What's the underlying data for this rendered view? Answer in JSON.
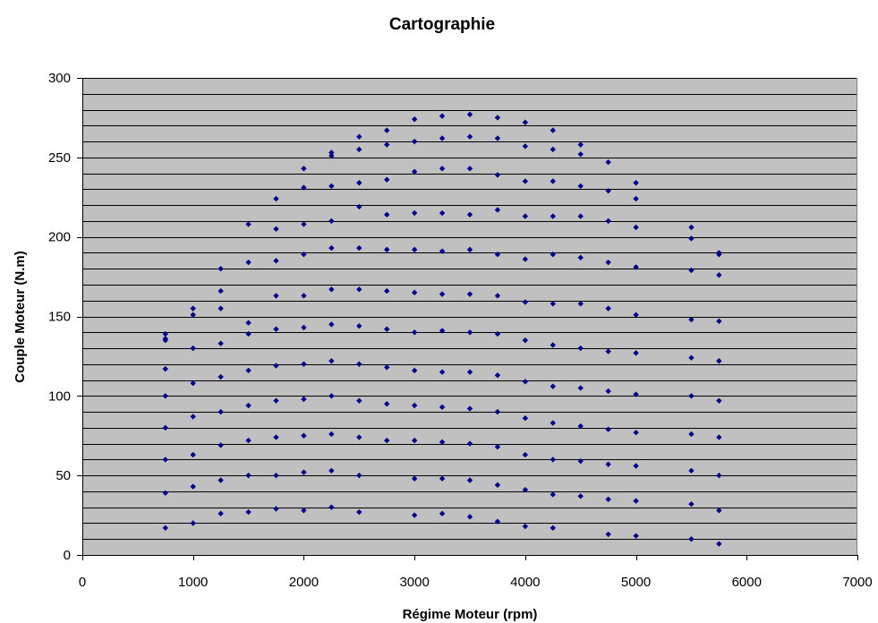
{
  "chart_data": {
    "type": "scatter",
    "title": "Cartographie",
    "xlabel": "Régime Moteur (rpm)",
    "ylabel": "Couple Moteur (N.m)",
    "xlim": [
      0,
      7000
    ],
    "ylim": [
      0,
      300
    ],
    "x_ticks": [
      "0",
      "1000",
      "2000",
      "3000",
      "4000",
      "5000",
      "6000",
      "7000"
    ],
    "y_ticks": [
      "0",
      "50",
      "100",
      "150",
      "200",
      "250",
      "300"
    ],
    "y_minor_step": 10,
    "grid": true,
    "legend": "none",
    "colors": {
      "plot_bg": "#c0c0c0",
      "grid": "#000000",
      "marker": "#00008b"
    },
    "series": [
      {
        "points": [
          [
            750,
            17
          ],
          [
            750,
            39
          ],
          [
            750,
            60
          ],
          [
            750,
            80
          ],
          [
            750,
            100
          ],
          [
            750,
            117
          ],
          [
            750,
            135
          ],
          [
            750,
            136
          ],
          [
            750,
            139
          ],
          [
            1000,
            20
          ],
          [
            1000,
            43
          ],
          [
            1000,
            63
          ],
          [
            1000,
            87
          ],
          [
            1000,
            108
          ],
          [
            1000,
            130
          ],
          [
            1000,
            151
          ],
          [
            1000,
            155
          ],
          [
            1250,
            26
          ],
          [
            1250,
            47
          ],
          [
            1250,
            69
          ],
          [
            1250,
            90
          ],
          [
            1250,
            112
          ],
          [
            1250,
            133
          ],
          [
            1250,
            155
          ],
          [
            1250,
            166
          ],
          [
            1250,
            180
          ],
          [
            1500,
            27
          ],
          [
            1500,
            50
          ],
          [
            1500,
            72
          ],
          [
            1500,
            94
          ],
          [
            1500,
            116
          ],
          [
            1500,
            139
          ],
          [
            1500,
            146
          ],
          [
            1500,
            184
          ],
          [
            1500,
            208
          ],
          [
            1750,
            29
          ],
          [
            1750,
            50
          ],
          [
            1750,
            74
          ],
          [
            1750,
            97
          ],
          [
            1750,
            119
          ],
          [
            1750,
            142
          ],
          [
            1750,
            163
          ],
          [
            1750,
            185
          ],
          [
            1750,
            205
          ],
          [
            1750,
            224
          ],
          [
            2000,
            28
          ],
          [
            2000,
            52
          ],
          [
            2000,
            75
          ],
          [
            2000,
            98
          ],
          [
            2000,
            120
          ],
          [
            2000,
            143
          ],
          [
            2000,
            163
          ],
          [
            2000,
            189
          ],
          [
            2000,
            208
          ],
          [
            2000,
            231
          ],
          [
            2000,
            243
          ],
          [
            2250,
            30
          ],
          [
            2250,
            53
          ],
          [
            2250,
            76
          ],
          [
            2250,
            100
          ],
          [
            2250,
            122
          ],
          [
            2250,
            145
          ],
          [
            2250,
            167
          ],
          [
            2250,
            193
          ],
          [
            2250,
            210
          ],
          [
            2250,
            232
          ],
          [
            2250,
            251
          ],
          [
            2250,
            253
          ],
          [
            2500,
            27
          ],
          [
            2500,
            50
          ],
          [
            2500,
            74
          ],
          [
            2500,
            97
          ],
          [
            2500,
            120
          ],
          [
            2500,
            144
          ],
          [
            2500,
            167
          ],
          [
            2500,
            193
          ],
          [
            2500,
            219
          ],
          [
            2500,
            234
          ],
          [
            2500,
            255
          ],
          [
            2500,
            263
          ],
          [
            2750,
            72
          ],
          [
            2750,
            95
          ],
          [
            2750,
            118
          ],
          [
            2750,
            142
          ],
          [
            2750,
            166
          ],
          [
            2750,
            192
          ],
          [
            2750,
            214
          ],
          [
            2750,
            236
          ],
          [
            2750,
            258
          ],
          [
            2750,
            267
          ],
          [
            3000,
            25
          ],
          [
            3000,
            48
          ],
          [
            3000,
            72
          ],
          [
            3000,
            94
          ],
          [
            3000,
            116
          ],
          [
            3000,
            140
          ],
          [
            3000,
            165
          ],
          [
            3000,
            192
          ],
          [
            3000,
            215
          ],
          [
            3000,
            241
          ],
          [
            3000,
            260
          ],
          [
            3000,
            274
          ],
          [
            3250,
            26
          ],
          [
            3250,
            48
          ],
          [
            3250,
            71
          ],
          [
            3250,
            93
          ],
          [
            3250,
            115
          ],
          [
            3250,
            141
          ],
          [
            3250,
            164
          ],
          [
            3250,
            191
          ],
          [
            3250,
            215
          ],
          [
            3250,
            243
          ],
          [
            3250,
            262
          ],
          [
            3250,
            276
          ],
          [
            3500,
            24
          ],
          [
            3500,
            47
          ],
          [
            3500,
            70
          ],
          [
            3500,
            92
          ],
          [
            3500,
            115
          ],
          [
            3500,
            140
          ],
          [
            3500,
            164
          ],
          [
            3500,
            192
          ],
          [
            3500,
            214
          ],
          [
            3500,
            243
          ],
          [
            3500,
            263
          ],
          [
            3500,
            277
          ],
          [
            3750,
            21
          ],
          [
            3750,
            44
          ],
          [
            3750,
            68
          ],
          [
            3750,
            90
          ],
          [
            3750,
            113
          ],
          [
            3750,
            139
          ],
          [
            3750,
            163
          ],
          [
            3750,
            189
          ],
          [
            3750,
            217
          ],
          [
            3750,
            239
          ],
          [
            3750,
            262
          ],
          [
            3750,
            275
          ],
          [
            4000,
            18
          ],
          [
            4000,
            41
          ],
          [
            4000,
            63
          ],
          [
            4000,
            86
          ],
          [
            4000,
            109
          ],
          [
            4000,
            135
          ],
          [
            4000,
            159
          ],
          [
            4000,
            186
          ],
          [
            4000,
            213
          ],
          [
            4000,
            235
          ],
          [
            4000,
            257
          ],
          [
            4000,
            272
          ],
          [
            4250,
            17
          ],
          [
            4250,
            38
          ],
          [
            4250,
            60
          ],
          [
            4250,
            83
          ],
          [
            4250,
            106
          ],
          [
            4250,
            132
          ],
          [
            4250,
            158
          ],
          [
            4250,
            189
          ],
          [
            4250,
            213
          ],
          [
            4250,
            235
          ],
          [
            4250,
            255
          ],
          [
            4250,
            267
          ],
          [
            4500,
            37
          ],
          [
            4500,
            59
          ],
          [
            4500,
            81
          ],
          [
            4500,
            105
          ],
          [
            4500,
            130
          ],
          [
            4500,
            158
          ],
          [
            4500,
            187
          ],
          [
            4500,
            213
          ],
          [
            4500,
            232
          ],
          [
            4500,
            252
          ],
          [
            4500,
            258
          ],
          [
            4750,
            13
          ],
          [
            4750,
            35
          ],
          [
            4750,
            57
          ],
          [
            4750,
            79
          ],
          [
            4750,
            103
          ],
          [
            4750,
            128
          ],
          [
            4750,
            155
          ],
          [
            4750,
            184
          ],
          [
            4750,
            210
          ],
          [
            4750,
            229
          ],
          [
            4750,
            247
          ],
          [
            5000,
            12
          ],
          [
            5000,
            34
          ],
          [
            5000,
            56
          ],
          [
            5000,
            77
          ],
          [
            5000,
            101
          ],
          [
            5000,
            127
          ],
          [
            5000,
            151
          ],
          [
            5000,
            181
          ],
          [
            5000,
            206
          ],
          [
            5000,
            224
          ],
          [
            5000,
            234
          ],
          [
            5500,
            10
          ],
          [
            5500,
            32
          ],
          [
            5500,
            53
          ],
          [
            5500,
            76
          ],
          [
            5500,
            100
          ],
          [
            5500,
            124
          ],
          [
            5500,
            148
          ],
          [
            5500,
            179
          ],
          [
            5500,
            199
          ],
          [
            5500,
            206
          ],
          [
            5750,
            7
          ],
          [
            5750,
            28
          ],
          [
            5750,
            50
          ],
          [
            5750,
            74
          ],
          [
            5750,
            97
          ],
          [
            5750,
            122
          ],
          [
            5750,
            147
          ],
          [
            5750,
            176
          ],
          [
            5750,
            189
          ],
          [
            5750,
            190
          ]
        ]
      }
    ]
  }
}
